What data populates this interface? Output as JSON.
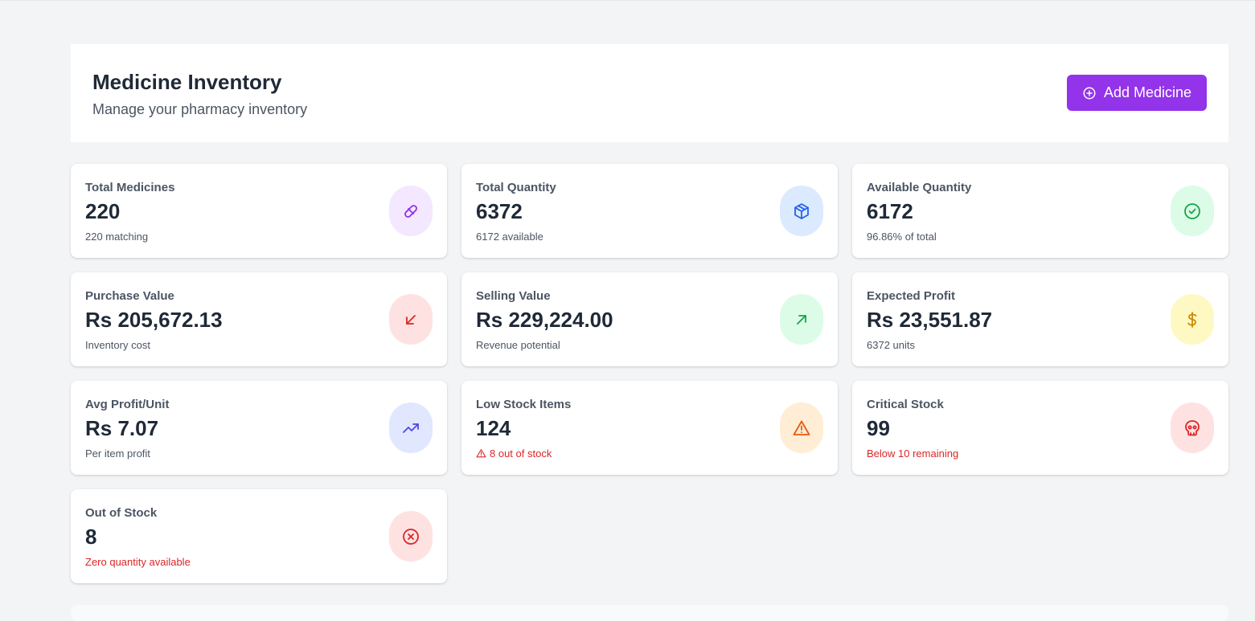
{
  "header": {
    "title": "Medicine Inventory",
    "subtitle": "Manage your pharmacy inventory",
    "add_button_label": "Add Medicine"
  },
  "stats": [
    {
      "label": "Total Medicines",
      "value": "220",
      "sub": "220 matching",
      "icon": "pill-icon",
      "icon_bg": "#f3e8ff",
      "icon_color": "#9333ea"
    },
    {
      "label": "Total Quantity",
      "value": "6372",
      "sub": "6172 available",
      "icon": "package-icon",
      "icon_bg": "#dbeafe",
      "icon_color": "#2563eb"
    },
    {
      "label": "Available Quantity",
      "value": "6172",
      "sub": "96.86% of total",
      "icon": "check-circle-icon",
      "icon_bg": "#dcfce7",
      "icon_color": "#16a34a"
    },
    {
      "label": "Purchase Value",
      "value": "Rs 205,672.13",
      "sub": "Inventory cost",
      "icon": "arrow-down-left-icon",
      "icon_bg": "#fee2e2",
      "icon_color": "#dc2626"
    },
    {
      "label": "Selling Value",
      "value": "Rs 229,224.00",
      "sub": "Revenue potential",
      "icon": "arrow-up-right-icon",
      "icon_bg": "#dcfce7",
      "icon_color": "#16a34a"
    },
    {
      "label": "Expected Profit",
      "value": "Rs 23,551.87",
      "sub": "6372 units",
      "icon": "dollar-icon",
      "icon_bg": "#fef9c3",
      "icon_color": "#ca8a04"
    },
    {
      "label": "Avg Profit/Unit",
      "value": "Rs 7.07",
      "sub": "Per item profit",
      "icon": "trending-up-icon",
      "icon_bg": "#e0e7ff",
      "icon_color": "#4f46e5"
    },
    {
      "label": "Low Stock Items",
      "value": "124",
      "sub": "8 out of stock",
      "icon": "warning-icon",
      "icon_bg": "#ffedd5",
      "icon_color": "#ea580c",
      "sub_color": "#dc2626"
    },
    {
      "label": "Critical Stock",
      "value": "99",
      "sub": "Below 10 remaining",
      "icon": "skull-icon",
      "icon_bg": "#fee2e2",
      "icon_color": "#dc2626",
      "sub_color": "#dc2626"
    },
    {
      "label": "Out of Stock",
      "value": "8",
      "sub": "Zero quantity available",
      "icon": "x-circle-icon",
      "icon_bg": "#fee2e2",
      "icon_color": "#dc2626",
      "sub_color": "#dc2626"
    }
  ]
}
